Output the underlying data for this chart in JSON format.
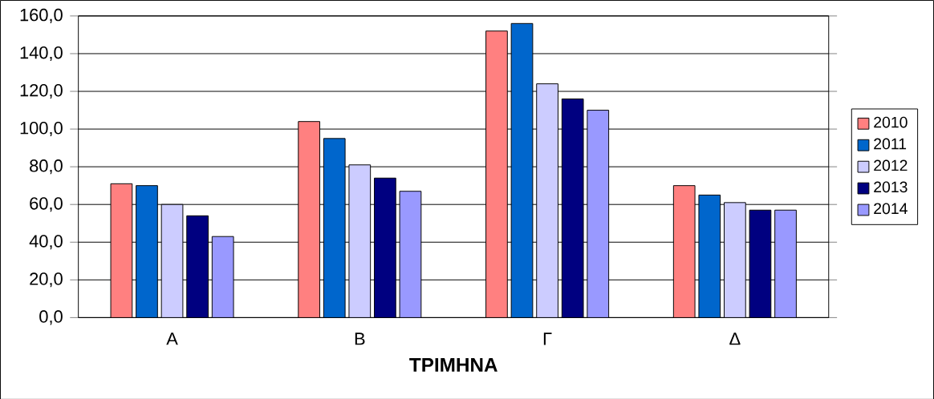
{
  "chart_data": {
    "type": "bar",
    "xlabel": "ΤΡΙΜΗΝΑ",
    "categories": [
      "Α",
      "Β",
      "Γ",
      "Δ"
    ],
    "series": [
      {
        "name": "2010",
        "color": "#ff8080",
        "values": [
          71,
          104,
          152,
          70
        ]
      },
      {
        "name": "2011",
        "color": "#0066cc",
        "values": [
          70,
          95,
          156,
          65
        ]
      },
      {
        "name": "2012",
        "color": "#ccccff",
        "values": [
          60,
          81,
          124,
          61
        ]
      },
      {
        "name": "2013",
        "color": "#000080",
        "values": [
          54,
          74,
          116,
          57
        ]
      },
      {
        "name": "2014",
        "color": "#9999ff",
        "values": [
          43,
          67,
          110,
          57
        ]
      }
    ],
    "ylim": [
      0,
      160
    ],
    "yticks": [
      {
        "value": 0,
        "label": "0,0"
      },
      {
        "value": 20,
        "label": "20,0"
      },
      {
        "value": 40,
        "label": "40,0"
      },
      {
        "value": 60,
        "label": "60,0"
      },
      {
        "value": 80,
        "label": "80,0"
      },
      {
        "value": 100,
        "label": "100,0"
      },
      {
        "value": 120,
        "label": "120,0"
      },
      {
        "value": 140,
        "label": "140,0"
      },
      {
        "value": 160,
        "label": "160,0"
      }
    ],
    "grid": "y",
    "legend": "right"
  }
}
